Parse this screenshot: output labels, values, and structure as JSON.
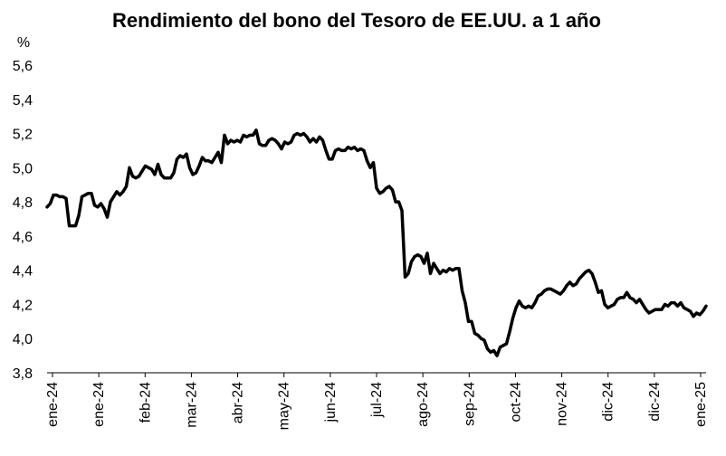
{
  "chart_data": {
    "type": "line",
    "title": "Rendimiento del bono del Tesoro de EE.UU. a 1 año",
    "y_unit_label": "%",
    "xlabel": "",
    "ylabel": "",
    "ylim": [
      3.8,
      5.6
    ],
    "y_ticks": [
      "3,8",
      "4,0",
      "4,2",
      "4,4",
      "4,6",
      "4,8",
      "5,0",
      "5,2",
      "5,4",
      "5,6"
    ],
    "x_ticks": [
      "ene-24",
      "ene-24",
      "feb-24",
      "mar-24",
      "abr-24",
      "may-24",
      "jun-24",
      "jul-24",
      "ago-24",
      "sep-24",
      "oct-24",
      "nov-24",
      "dic-24",
      "dic-24",
      "ene-25"
    ],
    "grid": false,
    "legend": "none",
    "line_color": "#000000",
    "series": [
      {
        "values": [
          4.77,
          4.79,
          4.84,
          4.84,
          4.83,
          4.83,
          4.82,
          4.66,
          4.66,
          4.66,
          4.72,
          4.83,
          4.84,
          4.85,
          4.85,
          4.78,
          4.77,
          4.79,
          4.76,
          4.71,
          4.8,
          4.83,
          4.86,
          4.84,
          4.86,
          4.89,
          5.0,
          4.95,
          4.94,
          4.95,
          4.98,
          5.01,
          5.0,
          4.99,
          4.96,
          5.02,
          4.96,
          4.94,
          4.94,
          4.94,
          4.97,
          5.05,
          5.07,
          5.06,
          5.08,
          5.0,
          4.96,
          4.97,
          5.01,
          5.06,
          5.04,
          5.04,
          5.03,
          5.06,
          5.09,
          5.03,
          5.19,
          5.14,
          5.16,
          5.15,
          5.16,
          5.15,
          5.19,
          5.18,
          5.19,
          5.19,
          5.22,
          5.14,
          5.13,
          5.13,
          5.16,
          5.17,
          5.16,
          5.14,
          5.11,
          5.15,
          5.14,
          5.15,
          5.19,
          5.2,
          5.19,
          5.2,
          5.18,
          5.15,
          5.17,
          5.15,
          5.18,
          5.16,
          5.1,
          5.05,
          5.05,
          5.1,
          5.11,
          5.1,
          5.1,
          5.12,
          5.11,
          5.12,
          5.1,
          5.11,
          5.1,
          5.04,
          5.0,
          5.03,
          4.88,
          4.85,
          4.86,
          4.88,
          4.89,
          4.87,
          4.8,
          4.8,
          4.75,
          4.36,
          4.38,
          4.45,
          4.48,
          4.49,
          4.48,
          4.44,
          4.5,
          4.38,
          4.44,
          4.41,
          4.38,
          4.4,
          4.39,
          4.41,
          4.4,
          4.41,
          4.41,
          4.28,
          4.21,
          4.1,
          4.1,
          4.03,
          4.02,
          4.0,
          3.99,
          3.94,
          3.92,
          3.93,
          3.9,
          3.95,
          3.96,
          3.97,
          4.04,
          4.12,
          4.18,
          4.22,
          4.19,
          4.18,
          4.19,
          4.18,
          4.21,
          4.25,
          4.26,
          4.28,
          4.29,
          4.29,
          4.28,
          4.27,
          4.26,
          4.28,
          4.31,
          4.33,
          4.31,
          4.32,
          4.35,
          4.37,
          4.39,
          4.4,
          4.38,
          4.33,
          4.27,
          4.28,
          4.2,
          4.18,
          4.19,
          4.2,
          4.23,
          4.24,
          4.24,
          4.27,
          4.24,
          4.23,
          4.21,
          4.23,
          4.2,
          4.17,
          4.15,
          4.16,
          4.17,
          4.17,
          4.17,
          4.2,
          4.19,
          4.21,
          4.21,
          4.19,
          4.21,
          4.18,
          4.17,
          4.16,
          4.13,
          4.15,
          4.14,
          4.16,
          4.19
        ]
      }
    ]
  }
}
